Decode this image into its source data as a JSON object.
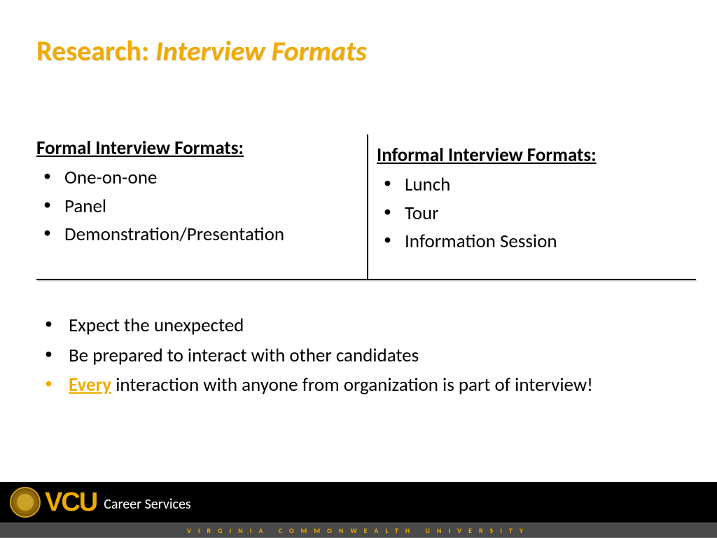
{
  "title": {
    "prefix": "Research:",
    "suffix": "Interview Formats",
    "color": "#f0ab00"
  },
  "columns": {
    "left": {
      "heading": "Formal Interview Formats:",
      "items": [
        "One-on-one",
        "Panel",
        "Demonstration/Presentation"
      ]
    },
    "right": {
      "heading": "Informal Interview Formats:",
      "items": [
        "Lunch",
        "Tour",
        "Information Session"
      ]
    }
  },
  "tips": [
    {
      "text": "Expect the unexpected",
      "accent": false
    },
    {
      "text": "Be prepared to interact with other candidates",
      "accent": false
    },
    {
      "accent": true,
      "accent_word": "Every",
      "rest": " interaction with anyone from organization is part of interview!"
    }
  ],
  "footer": {
    "logo_text": "VCU",
    "dept": "Career Services",
    "university": "VIRGINIA COMMONWEALTH UNIVERSITY",
    "accent_color": "#f0ab00",
    "black_bg": "#000000",
    "gray_bg": "#4a4a4a"
  }
}
